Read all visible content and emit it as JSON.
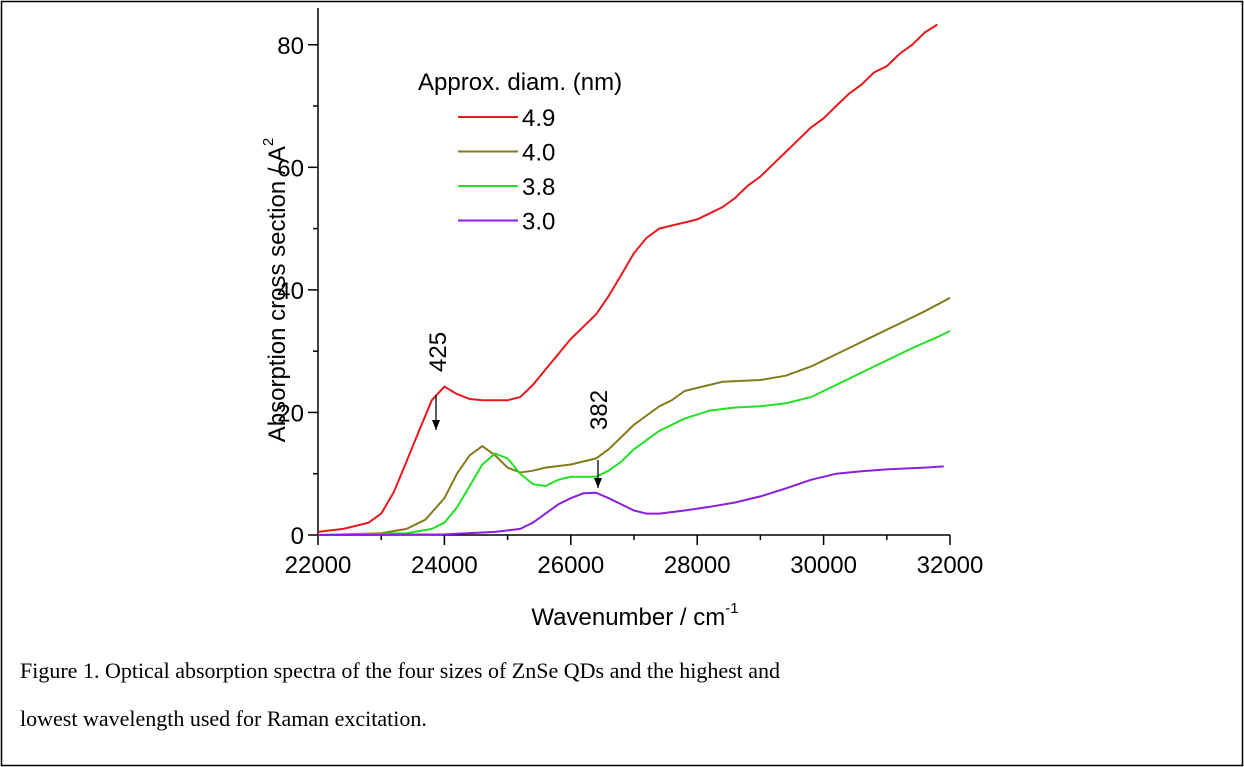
{
  "chart_data": {
    "type": "line",
    "ylabel": {
      "text": "Absorption cross section / A",
      "sup": "2"
    },
    "xlabel": {
      "text": "Wavenumber / cm",
      "sup": "-1"
    },
    "legend_title": "Approx. diam. (nm)",
    "xlim": [
      22000,
      32000
    ],
    "xticks": [
      22000,
      24000,
      26000,
      28000,
      30000,
      32000
    ],
    "ylim": [
      0,
      86
    ],
    "yticks": [
      0,
      20,
      40,
      60,
      80
    ],
    "annotations": [
      "425",
      "382"
    ],
    "series": [
      {
        "name": "4.9",
        "color": "#e8191c",
        "x": [
          22000,
          22400,
          22800,
          23000,
          23200,
          23400,
          23600,
          23800,
          24000,
          24200,
          24400,
          24600,
          25000,
          25200,
          25400,
          25600,
          25800,
          26000,
          26200,
          26400,
          26600,
          26800,
          27000,
          27200,
          27400,
          27600,
          27800,
          28000,
          28200,
          28400,
          28600,
          28800,
          29000,
          29200,
          29400,
          29600,
          29800,
          30000,
          30200,
          30400,
          30600,
          30800,
          31000,
          31200,
          31400,
          31600,
          31800
        ],
        "values": [
          0.5,
          1,
          2,
          3.5,
          7,
          12,
          17,
          22,
          24.2,
          23,
          22.2,
          22,
          22,
          22.5,
          24.5,
          27,
          29.5,
          32,
          34,
          36,
          39,
          42.5,
          46,
          48.5,
          50,
          50.5,
          51,
          51.5,
          52.5,
          53.5,
          55,
          57,
          58.5,
          60.5,
          62.5,
          64.5,
          66.5,
          68,
          70,
          72,
          73.5,
          75.5,
          76.5,
          78.5,
          80,
          82,
          83.3
        ]
      },
      {
        "name": "4.0",
        "color": "#857a1c",
        "x": [
          22000,
          23000,
          23400,
          23700,
          24000,
          24200,
          24400,
          24600,
          24800,
          25000,
          25200,
          25400,
          25600,
          26000,
          26400,
          26600,
          26800,
          27000,
          27200,
          27400,
          27600,
          27800,
          28000,
          28400,
          29000,
          29400,
          29800,
          30000,
          30400,
          30800,
          31200,
          31600,
          32000
        ],
        "values": [
          0,
          0.3,
          1,
          2.5,
          6,
          10,
          13,
          14.5,
          13,
          11,
          10.2,
          10.5,
          11,
          11.5,
          12.5,
          14,
          16,
          18,
          19.5,
          21,
          22,
          23.5,
          24,
          25,
          25.3,
          26,
          27.5,
          28.5,
          30.5,
          32.5,
          34.5,
          36.5,
          38.7
        ]
      },
      {
        "name": "3.8",
        "color": "#22e022",
        "x": [
          22000,
          23400,
          23800,
          24000,
          24200,
          24400,
          24600,
          24800,
          25000,
          25200,
          25400,
          25600,
          25800,
          26000,
          26400,
          26600,
          26800,
          27000,
          27400,
          27800,
          28200,
          28600,
          29000,
          29400,
          29800,
          30200,
          30600,
          31000,
          31400,
          31800,
          32000
        ],
        "values": [
          0,
          0.3,
          1,
          2,
          4.5,
          8,
          11.5,
          13.3,
          12.5,
          10,
          8.3,
          8,
          9,
          9.5,
          9.5,
          10.5,
          12,
          14,
          17,
          19,
          20.3,
          20.8,
          21,
          21.5,
          22.5,
          24.5,
          26.5,
          28.5,
          30.5,
          32.3,
          33.3
        ]
      },
      {
        "name": "3.0",
        "color": "#8a1fe0",
        "x": [
          22000,
          24000,
          24800,
          25200,
          25400,
          25600,
          25800,
          26000,
          26200,
          26400,
          26600,
          26800,
          27000,
          27200,
          27400,
          27800,
          28200,
          28600,
          29000,
          29400,
          29800,
          30200,
          30600,
          31000,
          31600,
          31900
        ],
        "values": [
          0,
          0.1,
          0.5,
          1,
          2,
          3.5,
          5,
          6,
          6.8,
          6.9,
          6,
          5,
          4,
          3.5,
          3.5,
          4,
          4.6,
          5.3,
          6.3,
          7.6,
          9,
          10,
          10.4,
          10.7,
          11,
          11.2
        ]
      }
    ]
  },
  "caption": [
    "Figure 1.  Optical absorption spectra of the four sizes of ZnSe QDs and the highest and",
    "lowest wavelength used for Raman excitation."
  ]
}
